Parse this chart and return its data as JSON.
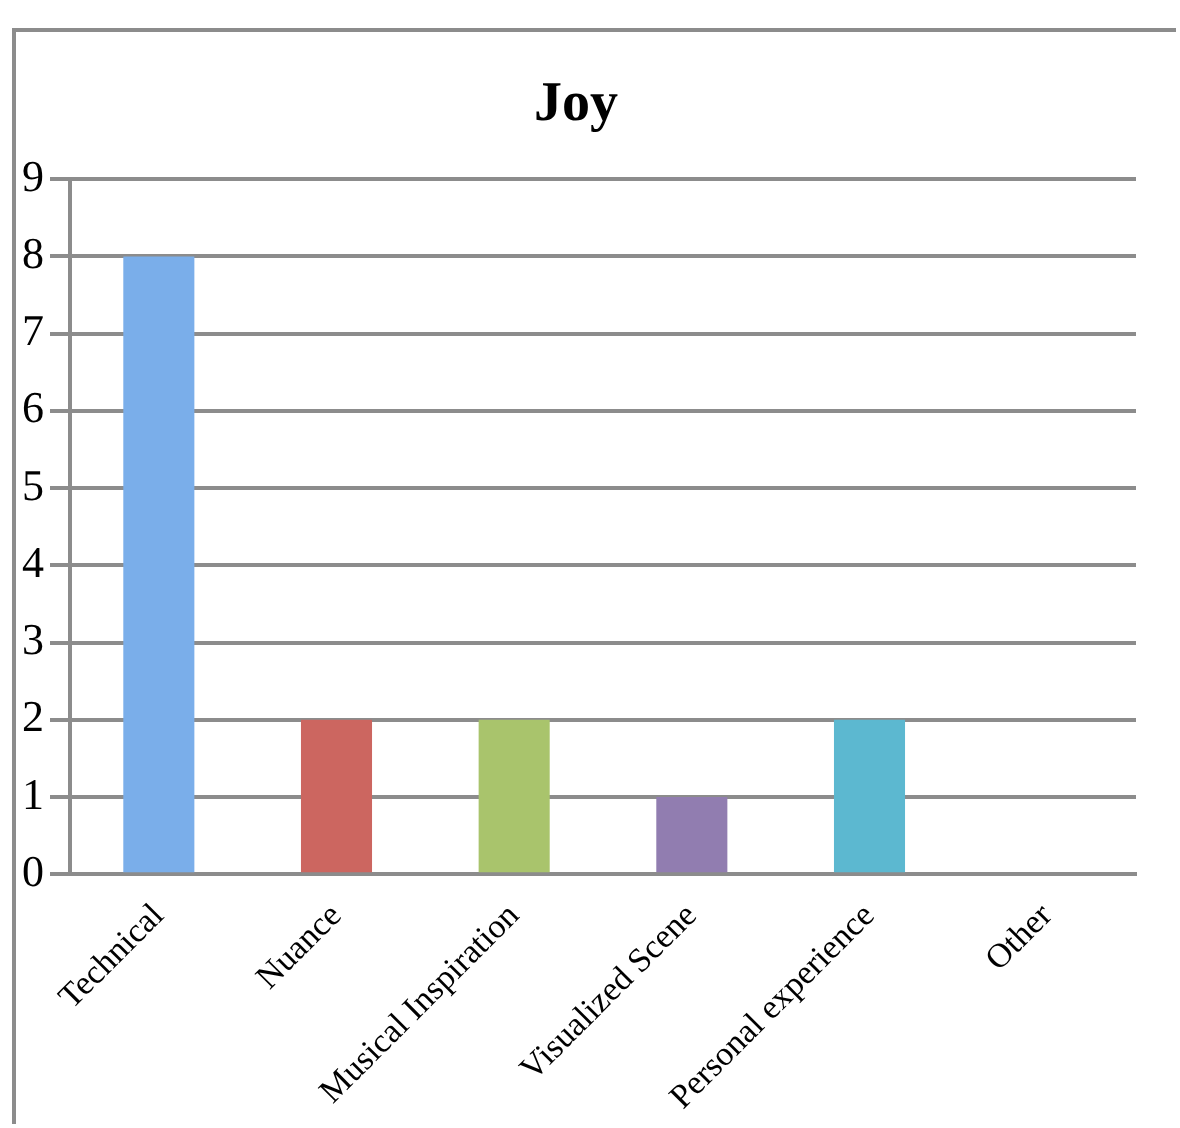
{
  "chart_data": {
    "type": "bar",
    "title": "Joy",
    "categories": [
      "Technical",
      "Nuance",
      "Musical Inspiration",
      "Visualized Scene",
      "Personal experience",
      "Other"
    ],
    "values": [
      8,
      2,
      2,
      1,
      2,
      0
    ],
    "colors": [
      "#7aaeea",
      "#cc6660",
      "#a9c46c",
      "#917db0",
      "#5cb8d0",
      "#4f81bd"
    ],
    "ylim": [
      0,
      9
    ],
    "yticks": [
      0,
      1,
      2,
      3,
      4,
      5,
      6,
      7,
      8,
      9
    ],
    "grid": "y",
    "legend": false
  }
}
